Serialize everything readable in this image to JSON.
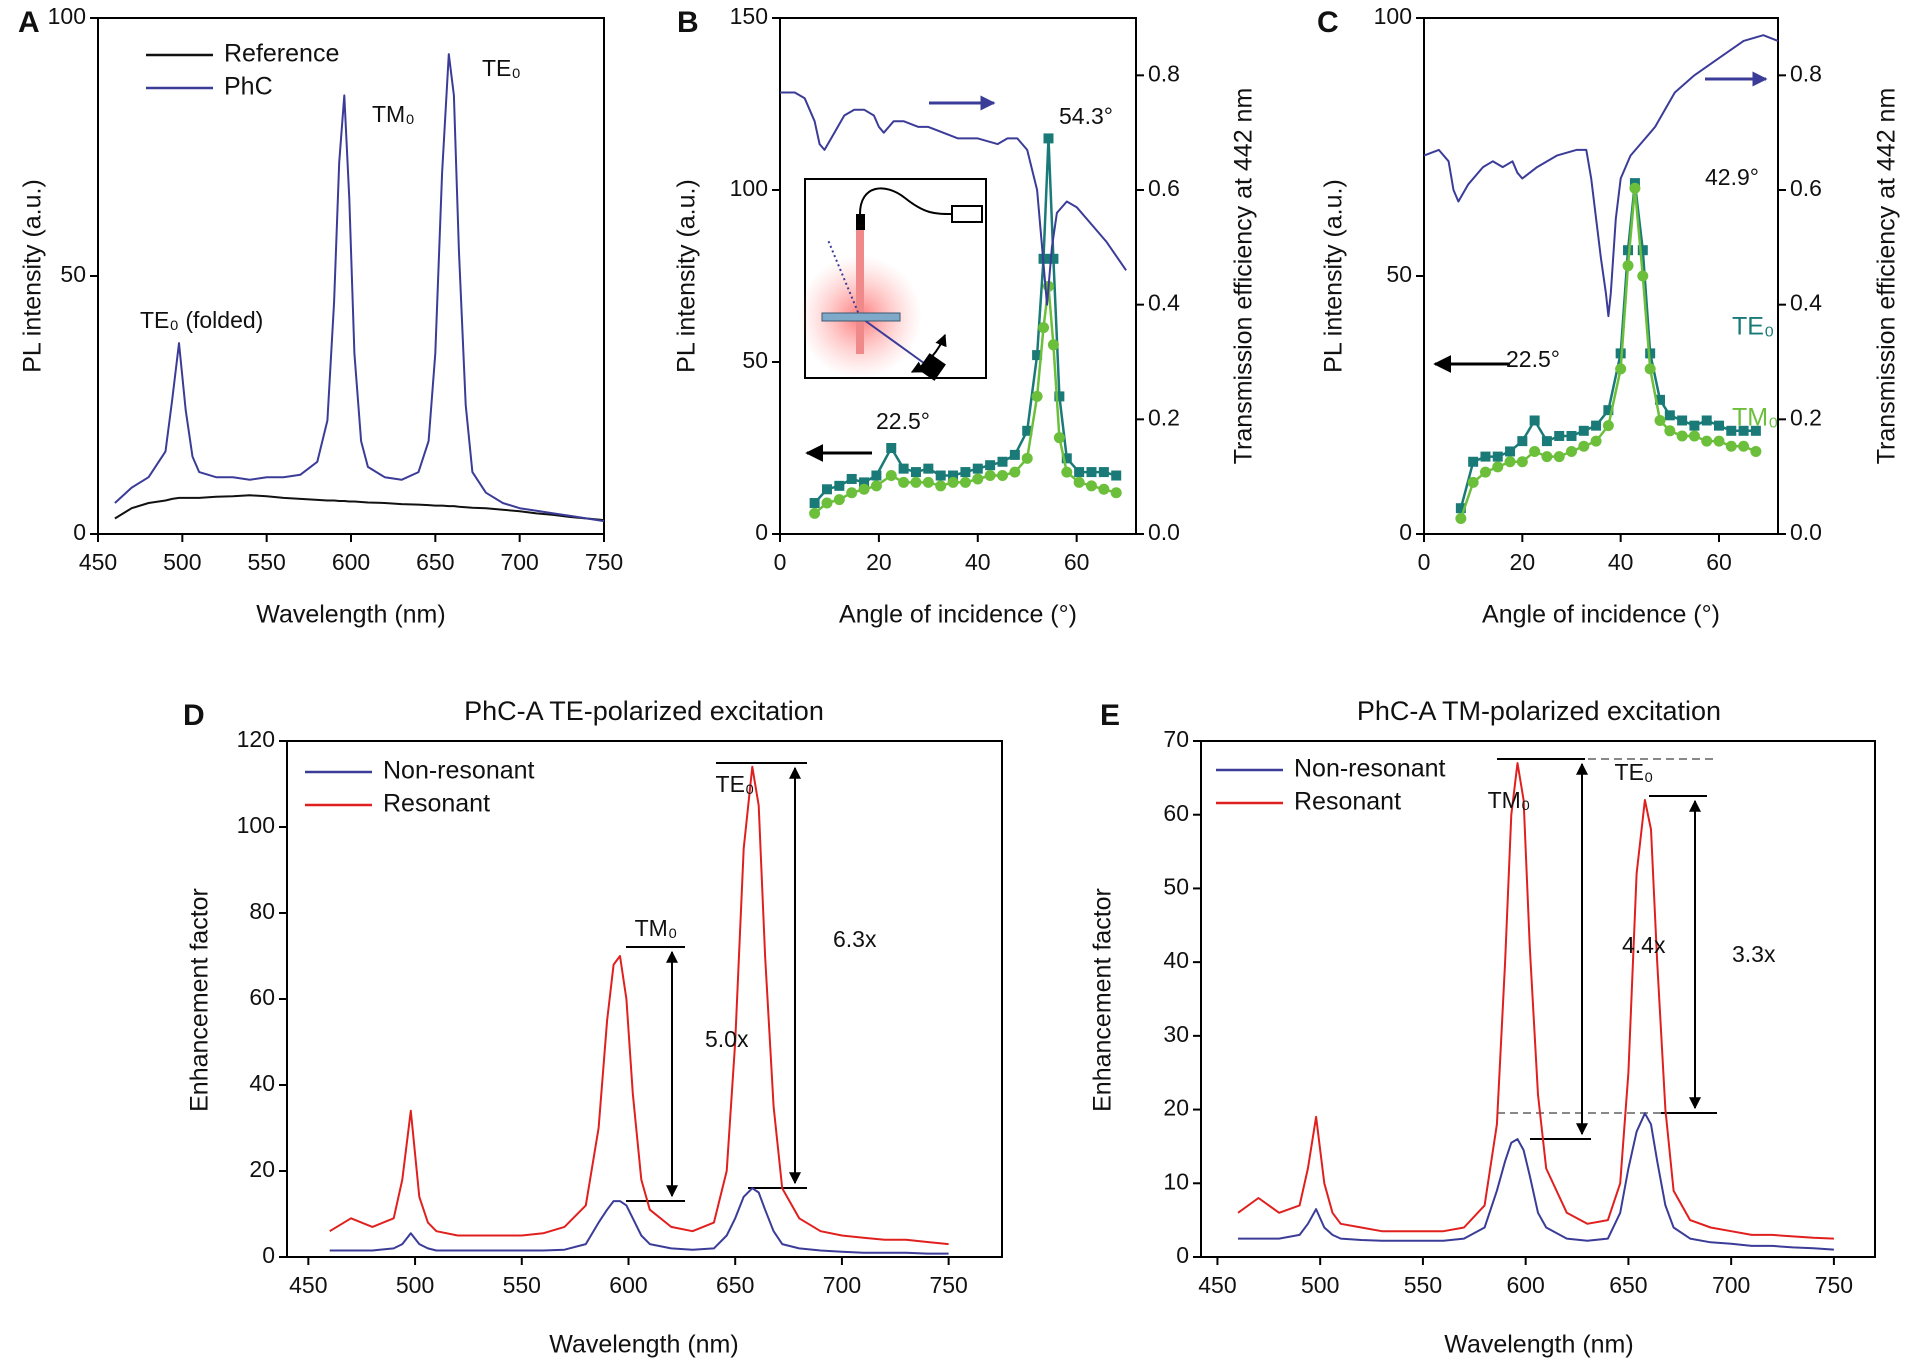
{
  "chart_data": [
    {
      "type": "line",
      "label": "A",
      "xlabel": "Wavelength (nm)",
      "ylabel": "PL intensity (a.u.)",
      "xlim": [
        450,
        750
      ],
      "xticks": [
        450,
        500,
        550,
        600,
        650,
        700,
        750
      ],
      "ylim": [
        0,
        100
      ],
      "yticks": [
        0,
        50,
        100
      ],
      "legend": "upper left",
      "x": [
        460,
        470,
        480,
        490,
        494,
        498,
        502,
        506,
        510,
        520,
        530,
        540,
        550,
        560,
        570,
        580,
        586,
        590,
        593,
        596,
        599,
        602,
        606,
        610,
        620,
        630,
        640,
        646,
        650,
        654,
        658,
        661,
        664,
        668,
        672,
        680,
        690,
        700,
        710,
        720,
        730,
        740,
        750
      ],
      "series": [
        {
          "name": "Reference",
          "color": "#111111",
          "values": [
            3,
            5,
            6,
            6.5,
            6.8,
            7,
            7,
            7,
            7,
            7.2,
            7.3,
            7.5,
            7.3,
            7,
            6.8,
            6.6,
            6.5,
            6.5,
            6.4,
            6.4,
            6.3,
            6.3,
            6.2,
            6.1,
            6,
            5.8,
            5.7,
            5.6,
            5.5,
            5.5,
            5.4,
            5.4,
            5.3,
            5.2,
            5.1,
            5,
            4.7,
            4.4,
            4,
            3.7,
            3.3,
            3,
            2.7
          ]
        },
        {
          "name": "PhC",
          "color": "#3b3c98",
          "values": [
            6,
            9,
            11,
            16,
            26,
            37,
            24,
            15,
            12,
            11,
            11,
            10.5,
            11,
            11,
            11.5,
            14,
            22,
            45,
            72,
            85,
            65,
            35,
            18,
            13,
            11,
            10.5,
            12,
            18,
            35,
            70,
            93,
            85,
            55,
            25,
            12,
            8,
            6,
            5,
            4.5,
            4,
            3.5,
            3,
            2.5
          ]
        }
      ],
      "annotations": [
        "TE₀ (folded)",
        "TM₀",
        "TE₀"
      ]
    },
    {
      "type": "line",
      "label": "B",
      "xlabel": "Angle of incidence (°)",
      "ylabel": "PL intensity (a.u.)",
      "y2label": "Transmission efficiency at 442 nm",
      "xlim": [
        0,
        72
      ],
      "xticks": [
        0,
        20,
        40,
        60
      ],
      "ylim": [
        0,
        150
      ],
      "yticks": [
        0,
        50,
        100,
        150
      ],
      "y2lim": [
        0,
        0.9
      ],
      "y2ticks": [
        {
          "value": 0,
          "label": "0.0"
        },
        0.2,
        0.4,
        0.6,
        0.8
      ],
      "series": [
        {
          "color": "#1a7a78",
          "marker": "square",
          "x": [
            7,
            9.5,
            12,
            14.5,
            17,
            19.5,
            22.5,
            25,
            27.5,
            30,
            32.5,
            35,
            37.5,
            40,
            42.5,
            45,
            47.5,
            50,
            52,
            53.3,
            54.3,
            55.3,
            56.5,
            58,
            60.5,
            63,
            65.5,
            68
          ],
          "values": [
            9,
            13,
            14,
            16,
            15,
            17,
            25,
            19,
            18,
            19,
            17,
            17,
            18,
            19,
            20,
            21,
            23,
            30,
            52,
            80,
            115,
            80,
            40,
            22,
            18,
            18,
            18,
            17
          ]
        },
        {
          "color": "#6cbf3a",
          "marker": "circle",
          "x": [
            7,
            9.5,
            12,
            14.5,
            17,
            19.5,
            22.5,
            25,
            27.5,
            30,
            32.5,
            35,
            37.5,
            40,
            42.5,
            45,
            47.5,
            50,
            52,
            53.3,
            54.3,
            55.3,
            56.5,
            58,
            60.5,
            63,
            65.5,
            68
          ],
          "values": [
            6,
            9,
            10,
            12,
            13,
            14,
            17,
            15,
            15,
            15,
            14,
            15,
            15,
            16,
            17,
            17,
            18,
            22,
            40,
            60,
            72,
            55,
            28,
            18,
            15,
            14,
            13,
            12
          ]
        },
        {
          "color": "#3b3c98",
          "axis": "y2",
          "x": [
            0,
            3,
            5,
            7,
            8,
            9,
            11,
            13,
            15,
            17,
            19,
            20,
            21,
            23,
            25,
            28,
            30,
            33,
            36,
            40,
            44,
            46,
            48,
            50,
            52,
            53,
            54,
            55,
            56,
            58,
            60,
            63,
            66,
            70
          ],
          "values": [
            0.77,
            0.77,
            0.76,
            0.72,
            0.68,
            0.67,
            0.7,
            0.73,
            0.74,
            0.74,
            0.73,
            0.71,
            0.7,
            0.72,
            0.72,
            0.71,
            0.71,
            0.7,
            0.69,
            0.69,
            0.68,
            0.69,
            0.69,
            0.67,
            0.6,
            0.5,
            0.4,
            0.5,
            0.56,
            0.58,
            0.57,
            0.54,
            0.51,
            0.46
          ]
        }
      ],
      "annotations": [
        "54.3°",
        "22.5°"
      ]
    },
    {
      "type": "line",
      "label": "C",
      "xlabel": "Angle of incidence (°)",
      "ylabel": "PL intensity (a.u.)",
      "y2label": "Transmission efficiency at 442 nm",
      "xlim": [
        0,
        72
      ],
      "xticks": [
        0,
        20,
        40,
        60
      ],
      "ylim": [
        0,
        100
      ],
      "yticks": [
        0,
        50,
        100
      ],
      "y2lim": [
        0,
        0.9
      ],
      "y2ticks": [
        {
          "value": 0,
          "label": "0.0"
        },
        0.2,
        0.4,
        0.6,
        0.8
      ],
      "legend": "beside curves",
      "series": [
        {
          "name": "TE₀",
          "color": "#1a7a78",
          "marker": "square",
          "x": [
            7.5,
            10,
            12.5,
            15,
            17.5,
            20,
            22.5,
            25,
            27.5,
            30,
            32.5,
            35,
            37.5,
            40,
            41.5,
            42.9,
            44.5,
            46,
            48,
            50,
            52.5,
            55,
            57.5,
            60,
            62.5,
            65,
            67.5
          ],
          "values": [
            5,
            14,
            15,
            15,
            16,
            18,
            22,
            18,
            19,
            19,
            20,
            21,
            24,
            35,
            55,
            68,
            55,
            35,
            26,
            23,
            22,
            21,
            22,
            21,
            20,
            20,
            20
          ]
        },
        {
          "name": "TM₀",
          "color": "#6cbf3a",
          "marker": "circle",
          "x": [
            7.5,
            10,
            12.5,
            15,
            17.5,
            20,
            22.5,
            25,
            27.5,
            30,
            32.5,
            35,
            37.5,
            40,
            41.5,
            42.9,
            44.5,
            46,
            48,
            50,
            52.5,
            55,
            57.5,
            60,
            62.5,
            65,
            67.5
          ],
          "values": [
            3,
            10,
            12,
            13,
            14,
            14,
            16,
            15,
            15,
            16,
            17,
            18,
            21,
            32,
            52,
            67,
            50,
            32,
            22,
            20,
            19,
            19,
            18,
            18,
            17,
            17,
            16
          ]
        },
        {
          "color": "#3b3c98",
          "axis": "y2",
          "x": [
            0,
            3,
            5,
            6,
            7,
            9,
            12,
            14,
            16,
            18,
            19,
            20,
            23,
            27,
            31,
            33,
            34,
            35,
            36,
            37,
            37.5,
            38,
            39,
            40,
            42,
            45,
            47,
            49,
            51,
            55,
            60,
            65,
            69,
            72
          ],
          "values": [
            0.66,
            0.67,
            0.65,
            0.6,
            0.58,
            0.61,
            0.64,
            0.65,
            0.64,
            0.65,
            0.63,
            0.62,
            0.64,
            0.66,
            0.67,
            0.67,
            0.62,
            0.55,
            0.48,
            0.42,
            0.38,
            0.42,
            0.55,
            0.62,
            0.66,
            0.69,
            0.71,
            0.74,
            0.77,
            0.8,
            0.83,
            0.86,
            0.87,
            0.86
          ]
        }
      ],
      "annotations": [
        "42.9°",
        "22.5°"
      ]
    },
    {
      "type": "line",
      "label": "D",
      "title": "PhC-A TE-polarized excitation",
      "xlabel": "Wavelength (nm)",
      "ylabel": "Enhancement factor",
      "xlim": [
        440,
        775
      ],
      "xticks": [
        450,
        500,
        550,
        600,
        650,
        700,
        750
      ],
      "ylim": [
        0,
        120
      ],
      "yticks": [
        0,
        20,
        40,
        60,
        80,
        100,
        120
      ],
      "legend": "upper left",
      "x": [
        460,
        470,
        480,
        490,
        494,
        498,
        502,
        506,
        510,
        520,
        530,
        540,
        550,
        560,
        570,
        580,
        586,
        590,
        593,
        596,
        599,
        602,
        606,
        610,
        620,
        630,
        640,
        646,
        650,
        654,
        658,
        661,
        664,
        668,
        672,
        680,
        690,
        700,
        710,
        720,
        730,
        740,
        750
      ],
      "series": [
        {
          "name": "Non-resonant",
          "color": "#3b3c98",
          "values": [
            1.5,
            1.5,
            1.5,
            2,
            3,
            5.5,
            3,
            2,
            1.5,
            1.5,
            1.5,
            1.5,
            1.5,
            1.5,
            1.7,
            3,
            8,
            11,
            13,
            13,
            12,
            9,
            5,
            3,
            2,
            1.7,
            2,
            5,
            9,
            14,
            16,
            15,
            11,
            6,
            3,
            2,
            1.5,
            1.2,
            1,
            1,
            1,
            0.8,
            0.8
          ]
        },
        {
          "name": "Resonant",
          "color": "#e0201e",
          "values": [
            6,
            9,
            7,
            9,
            18,
            34,
            14,
            8,
            6,
            5,
            5,
            5,
            5,
            5.5,
            7,
            12,
            30,
            55,
            68,
            70,
            60,
            38,
            18,
            11,
            7,
            6,
            8,
            20,
            50,
            95,
            114,
            105,
            70,
            35,
            16,
            9,
            6,
            5,
            4.5,
            4,
            4,
            3.5,
            3
          ]
        }
      ],
      "annotations": [
        "TM₀",
        "TE₀",
        "5.0x",
        "6.3x"
      ]
    },
    {
      "type": "line",
      "label": "E",
      "title": "PhC-A TM-polarized excitation",
      "xlabel": "Wavelength (nm)",
      "ylabel": "Enhancement factor",
      "xlim": [
        442,
        770
      ],
      "xticks": [
        450,
        500,
        550,
        600,
        650,
        700,
        750
      ],
      "ylim": [
        0,
        70
      ],
      "yticks": [
        0,
        10,
        20,
        30,
        40,
        50,
        60,
        70
      ],
      "legend": "upper left",
      "x": [
        460,
        470,
        480,
        490,
        494,
        498,
        502,
        506,
        510,
        520,
        530,
        540,
        550,
        560,
        570,
        580,
        586,
        590,
        593,
        596,
        599,
        602,
        606,
        610,
        620,
        630,
        640,
        646,
        650,
        654,
        658,
        661,
        664,
        668,
        672,
        680,
        690,
        700,
        710,
        720,
        730,
        740,
        750
      ],
      "series": [
        {
          "name": "Non-resonant",
          "color": "#3b3c98",
          "values": [
            2.5,
            2.5,
            2.5,
            3,
            4.5,
            6.5,
            4,
            3,
            2.5,
            2.3,
            2.2,
            2.2,
            2.2,
            2.2,
            2.5,
            4,
            9,
            13,
            15.5,
            16,
            14.5,
            11,
            6,
            4,
            2.5,
            2.2,
            2.5,
            6,
            12,
            17,
            19.5,
            18,
            13,
            7,
            4,
            2.5,
            2,
            1.8,
            1.5,
            1.5,
            1.3,
            1.2,
            1
          ]
        },
        {
          "name": "Resonant",
          "color": "#e0201e",
          "values": [
            6,
            8,
            6,
            7,
            12,
            19,
            10,
            6,
            4.5,
            4,
            3.5,
            3.5,
            3.5,
            3.5,
            4,
            7,
            18,
            40,
            60,
            67,
            62,
            42,
            22,
            12,
            6,
            4.5,
            5,
            10,
            25,
            52,
            62,
            58,
            40,
            20,
            9,
            5,
            4,
            3.5,
            3,
            3,
            2.8,
            2.6,
            2.5
          ]
        }
      ],
      "annotations": [
        "TM₀",
        "TE₀",
        "4.4x",
        "3.3x"
      ]
    }
  ]
}
